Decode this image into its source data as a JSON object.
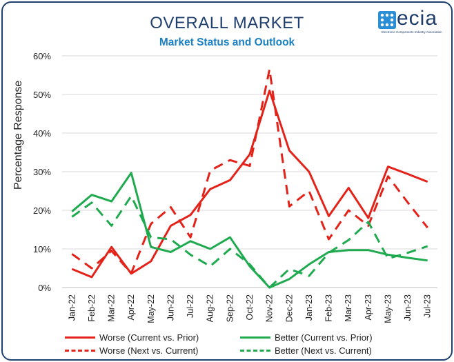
{
  "header": {
    "title": "OVERALL MARKET",
    "subtitle": "Market Status and Outlook"
  },
  "logo": {
    "word": "ecia",
    "tagline": "Electronic Components Industry Association",
    "color": "#1e3d6b",
    "icon": "ecia-grid-logo-icon"
  },
  "colors": {
    "worse": "#e32219",
    "better": "#1faa4f",
    "title": "#1f3f6e",
    "subtitle": "#1a7fc1"
  },
  "chart_data": {
    "type": "line",
    "ylabel": "Percentage Response",
    "ylim": [
      0,
      60
    ],
    "yticks": [
      "0%",
      "10%",
      "20%",
      "30%",
      "40%",
      "50%",
      "60%"
    ],
    "grid": true,
    "legend_position": "bottom",
    "categories": [
      "Jan-22",
      "Feb-22",
      "Mar-22",
      "Apr-22",
      "May-22",
      "Jun-22",
      "Jul-22",
      "Aug-22",
      "Sep-22",
      "Oct-22",
      "Nov-22",
      "Dec-22",
      "Jan-23",
      "Feb-23",
      "Mar-23",
      "Apr-23",
      "May-23",
      "Jun-23",
      "Jul-23"
    ],
    "series": [
      {
        "name": "Worse (Current vs. Prior)",
        "color": "#e32219",
        "dashed": false,
        "values": [
          4.8,
          2.7,
          10.5,
          3.6,
          6.8,
          16.0,
          18.8,
          25.5,
          27.8,
          34.5,
          51.0,
          35.5,
          30.0,
          18.5,
          25.8,
          18.0,
          31.3,
          29.4,
          27.4
        ]
      },
      {
        "name": "Worse (Next vs. Current)",
        "color": "#e32219",
        "dashed": true,
        "values": [
          8.7,
          5.0,
          9.5,
          3.7,
          16.5,
          20.8,
          13.0,
          30.3,
          33.0,
          31.5,
          56.5,
          21.0,
          25.0,
          12.5,
          20.0,
          16.0,
          28.8,
          22.0,
          15.5
        ]
      },
      {
        "name": "Better (Current vs. Prior)",
        "color": "#1faa4f",
        "dashed": false,
        "values": [
          19.7,
          24.0,
          22.3,
          29.7,
          10.5,
          9.2,
          12.0,
          10.0,
          13.0,
          5.5,
          0.0,
          2.2,
          6.0,
          9.2,
          9.7,
          9.7,
          8.5,
          7.7,
          7.0
        ]
      },
      {
        "name": "Better (Next vs. Current)",
        "color": "#1faa4f",
        "dashed": true,
        "values": [
          18.3,
          22.0,
          16.0,
          23.7,
          13.0,
          12.5,
          8.5,
          5.5,
          10.0,
          6.0,
          0.0,
          4.8,
          3.0,
          9.0,
          12.3,
          17.0,
          7.5,
          9.0,
          10.7
        ]
      }
    ]
  }
}
